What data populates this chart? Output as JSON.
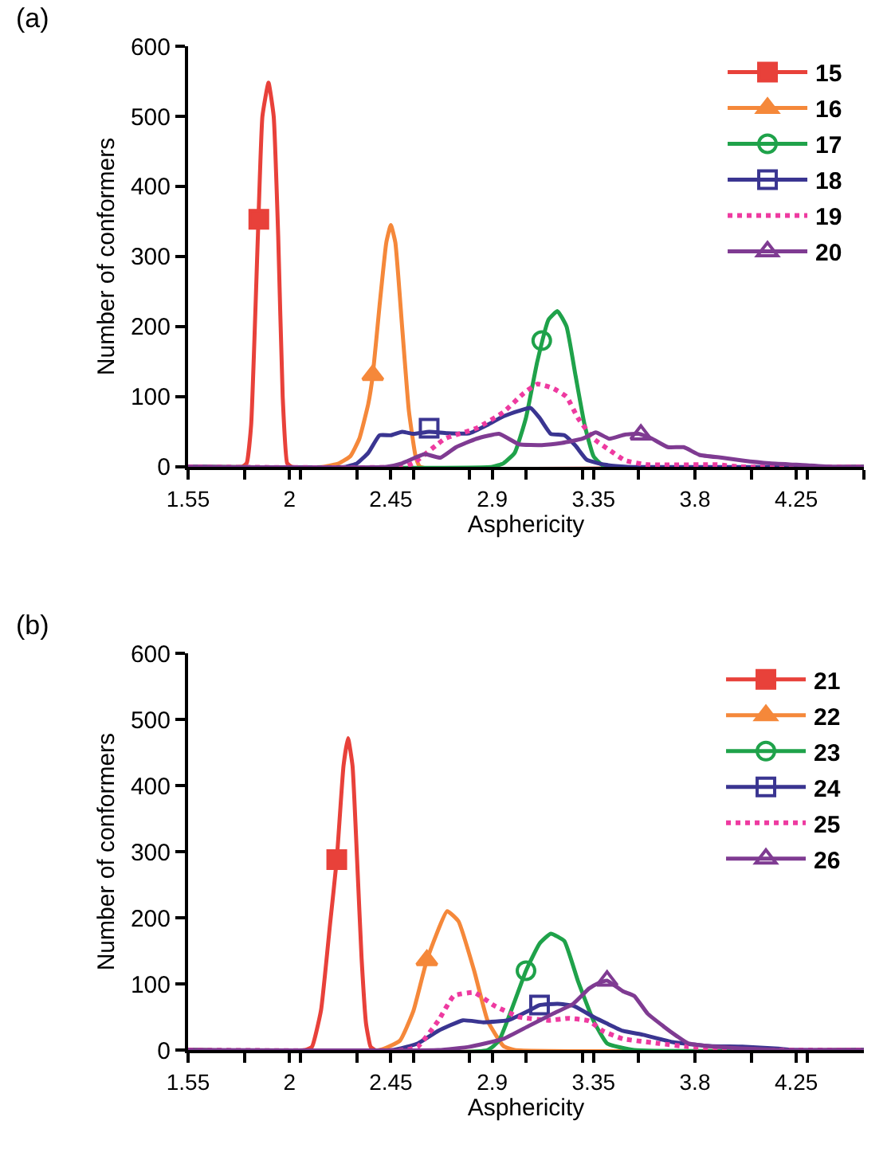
{
  "chart_data": [
    {
      "type": "line",
      "title": "(a)",
      "xlabel": "Asphericity",
      "ylabel": "Number of conformers",
      "xlim": [
        1.55,
        4.55
      ],
      "xticks": [
        1.55,
        2,
        2.45,
        2.9,
        3.35,
        3.8,
        4.25,
        {
          "value": 1.8,
          "label": null
        },
        {
          "value": 2.05,
          "label": null
        },
        {
          "value": 2.3,
          "label": null
        },
        {
          "value": 2.55,
          "label": null
        },
        {
          "value": 2.8,
          "label": null
        },
        {
          "value": 3.05,
          "label": null
        },
        {
          "value": 3.3,
          "label": null
        },
        {
          "value": 3.55,
          "label": null
        },
        {
          "value": 4.05,
          "label": null
        },
        {
          "value": 4.3,
          "label": null
        },
        {
          "value": 4.55,
          "label": null
        }
      ],
      "ylim": [
        0,
        600
      ],
      "yticks": [
        0,
        100,
        200,
        300,
        400,
        500,
        600
      ],
      "legend": "top right",
      "series": [
        {
          "type": "line",
          "color": "#e8413a",
          "x": [
            1.55,
            1.79,
            1.81,
            1.83,
            1.86,
            1.88,
            1.907,
            1.93,
            1.95,
            1.97,
            1.99,
            2.01,
            4.55
          ],
          "values": [
            0,
            0,
            5,
            60,
            330,
            500,
            548,
            500,
            330,
            100,
            5,
            0,
            0
          ]
        },
        {
          "type": "scatter",
          "name": "15",
          "color": "#e8413a",
          "marker": "square",
          "x": [
            1.864
          ],
          "values": [
            353
          ]
        },
        {
          "type": "line",
          "color": "#f5883a",
          "x": [
            1.55,
            2.15,
            2.22,
            2.27,
            2.31,
            2.35,
            2.37,
            2.4,
            2.43,
            2.45,
            2.47,
            2.5,
            2.53,
            2.56,
            2.58,
            4.55
          ],
          "values": [
            0,
            0,
            5,
            15,
            40,
            90,
            131,
            230,
            320,
            345,
            320,
            200,
            80,
            15,
            0,
            0
          ]
        },
        {
          "type": "scatter",
          "name": "16",
          "color": "#f5883a",
          "marker": "triangle",
          "x": [
            2.37
          ],
          "values": [
            131
          ]
        },
        {
          "type": "line",
          "color": "#1fa24a",
          "x": [
            1.55,
            2.9,
            2.95,
            3.0,
            3.05,
            3.1,
            3.15,
            3.19,
            3.23,
            3.27,
            3.31,
            3.35,
            3.4,
            4.55
          ],
          "values": [
            0,
            0,
            5,
            20,
            70,
            150,
            210,
            222,
            200,
            130,
            60,
            15,
            0,
            0
          ]
        },
        {
          "type": "scatter",
          "name": "17",
          "color": "#1fa24a",
          "marker": "circle-open",
          "x": [
            3.12
          ],
          "values": [
            180
          ]
        },
        {
          "type": "line",
          "color": "#3a3591",
          "x": [
            1.55,
            2.25,
            2.3,
            2.35,
            2.4,
            2.45,
            2.5,
            2.55,
            2.62,
            2.7,
            2.8,
            2.88,
            2.95,
            3.02,
            3.07,
            3.11,
            3.16,
            3.22,
            3.27,
            3.32,
            3.4,
            3.5,
            4.55
          ],
          "values": [
            0,
            0,
            5,
            20,
            45,
            45,
            50,
            47,
            50,
            48,
            48,
            60,
            72,
            80,
            84,
            70,
            47,
            45,
            30,
            10,
            3,
            0,
            0
          ]
        },
        {
          "type": "scatter",
          "name": "18",
          "color": "#3a3591",
          "marker": "square-open",
          "x": [
            2.62
          ],
          "values": [
            55
          ]
        },
        {
          "type": "line",
          "name": "19",
          "color": "#ee3aa0",
          "line_style": "dotted",
          "x": [
            1.55,
            2.5,
            2.55,
            2.69,
            2.83,
            2.95,
            3.04,
            3.1,
            3.17,
            3.23,
            3.28,
            3.35,
            3.42,
            3.49,
            3.59,
            3.9,
            4.0,
            4.55
          ],
          "values": [
            0,
            0,
            5,
            40,
            55,
            78,
            105,
            118,
            112,
            100,
            70,
            40,
            24,
            9,
            3,
            3,
            0,
            0
          ]
        },
        {
          "type": "line",
          "color": "#7f3b92",
          "x": [
            1.55,
            2.43,
            2.5,
            2.6,
            2.67,
            2.74,
            2.83,
            2.93,
            3.02,
            3.12,
            3.21,
            3.3,
            3.36,
            3.42,
            3.49,
            3.55,
            3.61,
            3.68,
            3.75,
            3.82,
            3.92,
            4.01,
            4.13,
            4.25,
            4.41,
            4.55
          ],
          "values": [
            0,
            0,
            5,
            18,
            13,
            28,
            40,
            47,
            32,
            31,
            34,
            40,
            49,
            40,
            46,
            47,
            40,
            28,
            28,
            17,
            13,
            9,
            5,
            3,
            0,
            0
          ]
        },
        {
          "type": "scatter",
          "name": "20",
          "color": "#7f3b92",
          "marker": "triangle-open",
          "x": [
            3.56
          ],
          "values": [
            46
          ]
        }
      ]
    },
    {
      "type": "line",
      "title": "(b)",
      "xlabel": "Asphericity",
      "ylabel": "Number of conformers",
      "xlim": [
        1.55,
        4.55
      ],
      "xticks": [
        1.55,
        2,
        2.45,
        2.9,
        3.35,
        3.8,
        4.25,
        {
          "value": 1.8,
          "label": null
        },
        {
          "value": 2.05,
          "label": null
        },
        {
          "value": 2.3,
          "label": null
        },
        {
          "value": 2.55,
          "label": null
        },
        {
          "value": 2.8,
          "label": null
        },
        {
          "value": 3.05,
          "label": null
        },
        {
          "value": 3.3,
          "label": null
        },
        {
          "value": 3.55,
          "label": null
        },
        {
          "value": 4.05,
          "label": null
        },
        {
          "value": 4.3,
          "label": null
        }
      ],
      "ylim": [
        0,
        600
      ],
      "yticks": [
        0,
        100,
        200,
        300,
        400,
        500,
        600
      ],
      "legend": "top right",
      "series": [
        {
          "type": "line",
          "color": "#e8413a",
          "x": [
            1.55,
            2.07,
            2.1,
            2.14,
            2.18,
            2.21,
            2.24,
            2.26,
            2.28,
            2.3,
            2.32,
            2.34,
            2.36,
            2.38,
            4.55
          ],
          "values": [
            0,
            0,
            5,
            60,
            190,
            288,
            430,
            472,
            430,
            290,
            140,
            40,
            5,
            0,
            0
          ]
        },
        {
          "type": "scatter",
          "name": "21",
          "color": "#e8413a",
          "marker": "square",
          "x": [
            2.21
          ],
          "values": [
            288
          ]
        },
        {
          "type": "line",
          "color": "#f5883a",
          "x": [
            1.55,
            2.4,
            2.49,
            2.55,
            2.61,
            2.7,
            2.75,
            2.82,
            2.88,
            2.95,
            3.0,
            4.55
          ],
          "values": [
            0,
            0,
            14,
            59,
            136,
            210,
            195,
            120,
            44,
            6,
            0,
            0
          ]
        },
        {
          "type": "scatter",
          "name": "22",
          "color": "#f5883a",
          "marker": "triangle",
          "x": [
            2.61
          ],
          "values": [
            136
          ]
        },
        {
          "type": "line",
          "color": "#1fa24a",
          "x": [
            1.55,
            2.88,
            2.93,
            3.0,
            3.05,
            3.11,
            3.16,
            3.22,
            3.28,
            3.35,
            3.41,
            3.53,
            4.55
          ],
          "values": [
            0,
            0,
            14,
            74,
            120,
            161,
            176,
            165,
            105,
            44,
            10,
            0,
            0
          ]
        },
        {
          "type": "scatter",
          "name": "23",
          "color": "#1fa24a",
          "marker": "circle-open",
          "x": [
            3.05
          ],
          "values": [
            120
          ]
        },
        {
          "type": "line",
          "color": "#3a3591",
          "x": [
            1.55,
            2.46,
            2.57,
            2.66,
            2.77,
            2.86,
            2.97,
            3.06,
            3.11,
            3.19,
            3.26,
            3.35,
            3.41,
            3.48,
            3.57,
            3.7,
            3.86,
            4.01,
            4.17,
            4.25,
            4.55
          ],
          "values": [
            0,
            0,
            10,
            29,
            45,
            42,
            45,
            59,
            68,
            70,
            67,
            50,
            40,
            29,
            23,
            12,
            6,
            5,
            2,
            0,
            0
          ]
        },
        {
          "type": "scatter",
          "name": "24",
          "color": "#3a3591",
          "marker": "square-open",
          "x": [
            3.11
          ],
          "values": [
            68
          ]
        },
        {
          "type": "line",
          "name": "25",
          "color": "#ee3aa0",
          "line_style": "dotted",
          "x": [
            1.55,
            2.52,
            2.57,
            2.66,
            2.73,
            2.82,
            2.91,
            3.02,
            3.15,
            3.24,
            3.33,
            3.39,
            3.48,
            3.64,
            3.77,
            3.92,
            4.1,
            4.55
          ],
          "values": [
            0,
            0,
            5,
            44,
            82,
            87,
            67,
            50,
            45,
            48,
            44,
            29,
            17,
            10,
            5,
            2,
            0,
            0
          ]
        },
        {
          "type": "line",
          "color": "#7f3b92",
          "x": [
            1.55,
            2.66,
            2.8,
            2.95,
            3.06,
            3.17,
            3.26,
            3.33,
            3.37,
            3.41,
            3.48,
            3.53,
            3.59,
            3.66,
            3.72,
            3.77,
            3.86,
            4.03,
            4.19,
            4.55
          ],
          "values": [
            0,
            0,
            5,
            17,
            36,
            55,
            70,
            93,
            101,
            105,
            89,
            82,
            55,
            36,
            21,
            10,
            6,
            2,
            0,
            0
          ]
        },
        {
          "type": "scatter",
          "name": "26",
          "color": "#7f3b92",
          "marker": "triangle-open",
          "x": [
            3.41
          ],
          "values": [
            105
          ]
        }
      ]
    }
  ]
}
